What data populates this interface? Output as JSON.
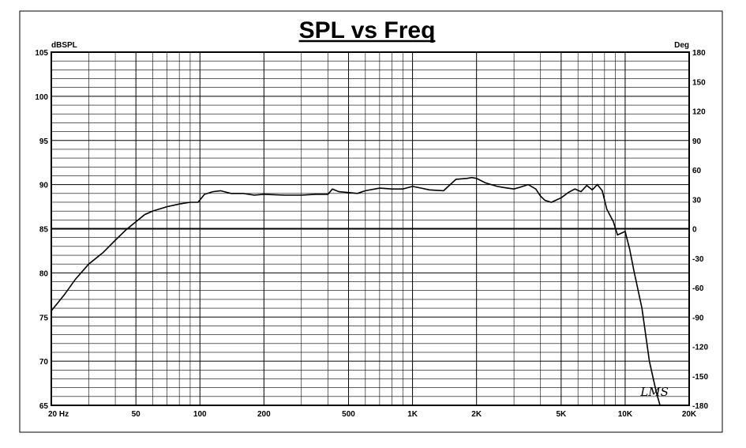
{
  "chart_data": {
    "type": "line",
    "title": "SPL vs Freq",
    "ylabel": "dBSPL",
    "y2label": "Deg",
    "xscale": "log",
    "xlim": [
      20,
      20000
    ],
    "ylim": [
      65,
      105
    ],
    "y2lim": [
      -180,
      180
    ],
    "grid": true,
    "x_ticks": [
      {
        "value": 20,
        "label": "20  Hz"
      },
      {
        "value": 50,
        "label": "50"
      },
      {
        "value": 100,
        "label": "100"
      },
      {
        "value": 200,
        "label": "200"
      },
      {
        "value": 500,
        "label": "500"
      },
      {
        "value": 1000,
        "label": "1K"
      },
      {
        "value": 2000,
        "label": "2K"
      },
      {
        "value": 5000,
        "label": "5K"
      },
      {
        "value": 10000,
        "label": "10K"
      },
      {
        "value": 20000,
        "label": "20K"
      }
    ],
    "y_ticks": [
      {
        "value": 105,
        "label": "105"
      },
      {
        "value": 100,
        "label": "100"
      },
      {
        "value": 95,
        "label": "95"
      },
      {
        "value": 90,
        "label": "90"
      },
      {
        "value": 85,
        "label": "85"
      },
      {
        "value": 80,
        "label": "80"
      },
      {
        "value": 75,
        "label": "75"
      },
      {
        "value": 70,
        "label": "70"
      },
      {
        "value": 65,
        "label": "65"
      }
    ],
    "y2_ticks": [
      {
        "value": 180,
        "label": "180"
      },
      {
        "value": 150,
        "label": "150"
      },
      {
        "value": 120,
        "label": "120"
      },
      {
        "value": 90,
        "label": "90"
      },
      {
        "value": 60,
        "label": "60"
      },
      {
        "value": 30,
        "label": "30"
      },
      {
        "value": 0,
        "label": "0"
      },
      {
        "value": -30,
        "label": "-30"
      },
      {
        "value": -60,
        "label": "-60"
      },
      {
        "value": -90,
        "label": "-90"
      },
      {
        "value": -120,
        "label": "-120"
      },
      {
        "value": -150,
        "label": "-150"
      },
      {
        "value": -180,
        "label": "-180"
      }
    ],
    "series": [
      {
        "color": "#000000",
        "x": [
          20,
          23,
          26,
          30,
          35,
          40,
          45,
          50,
          55,
          60,
          70,
          80,
          90,
          98,
          105,
          115,
          125,
          140,
          160,
          180,
          200,
          250,
          300,
          350,
          400,
          420,
          450,
          500,
          550,
          600,
          700,
          800,
          900,
          1000,
          1100,
          1200,
          1400,
          1600,
          1800,
          1900,
          2000,
          2200,
          2500,
          2800,
          3000,
          3200,
          3500,
          3800,
          4000,
          4200,
          4500,
          5000,
          5400,
          5800,
          6200,
          6600,
          7000,
          7400,
          7800,
          8200,
          8800,
          9200,
          9600,
          10000,
          10500,
          11000,
          12000,
          13000,
          14000,
          15000,
          16000
        ],
        "y": [
          75.7,
          77.5,
          79.3,
          81.0,
          82.3,
          83.7,
          84.9,
          85.8,
          86.6,
          87.0,
          87.5,
          87.8,
          88.0,
          88.0,
          88.9,
          89.2,
          89.3,
          89.0,
          89.0,
          88.8,
          88.9,
          88.8,
          88.8,
          88.9,
          88.9,
          89.5,
          89.2,
          89.1,
          89.0,
          89.3,
          89.6,
          89.5,
          89.5,
          89.8,
          89.6,
          89.4,
          89.3,
          90.6,
          90.7,
          90.8,
          90.7,
          90.2,
          89.8,
          89.6,
          89.5,
          89.7,
          90.0,
          89.5,
          88.7,
          88.2,
          88.0,
          88.5,
          89.1,
          89.5,
          89.2,
          89.9,
          89.4,
          90.0,
          89.3,
          87.2,
          85.8,
          84.3,
          84.5,
          84.7,
          82.7,
          80.2,
          76.0,
          70.0,
          66.5,
          64.0,
          61.0
        ]
      }
    ]
  },
  "signature": "LMS"
}
